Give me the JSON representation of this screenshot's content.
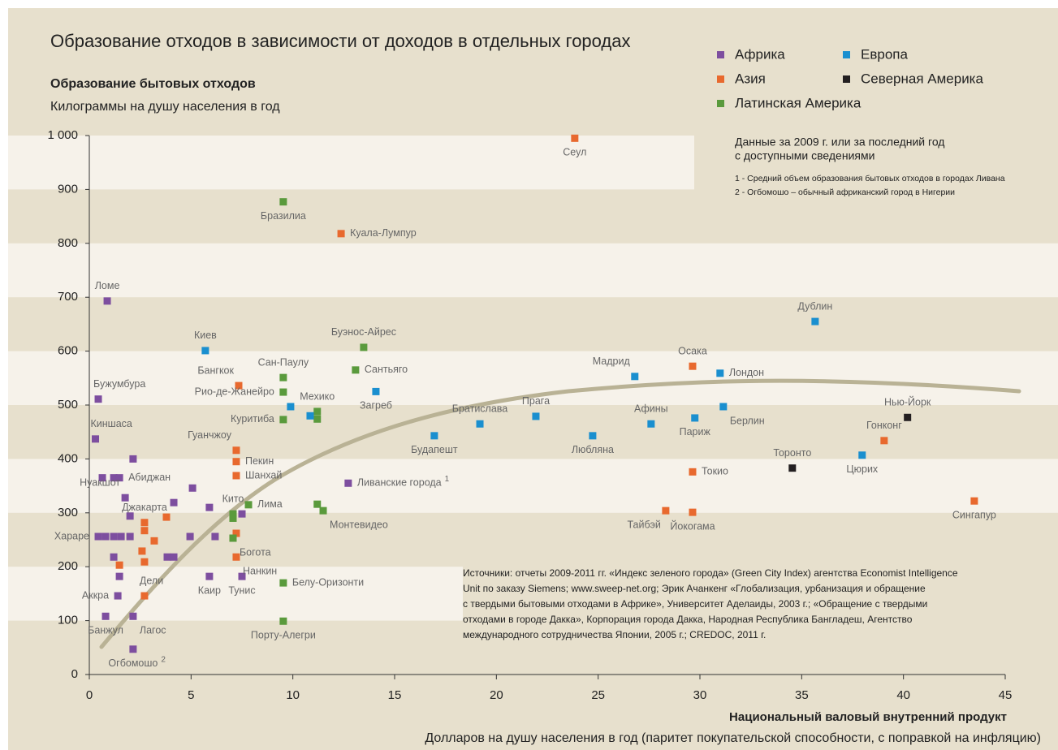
{
  "chart_data": {
    "type": "scatter",
    "title": "Образование отходов в зависимости от доходов в отдельных городах",
    "subtitle": "Образование бытовых отходов",
    "y_label": "Килограммы на душу населения в год",
    "x_label": "Национальный валовый внутренний продукт",
    "x_sublabel": "Долларов на душу населения в год (паритет покупательской способности, с поправкой на инфляцию)",
    "note": [
      "Данные за 2009 г. или за последний год",
      "с доступными сведениями"
    ],
    "footnotes": [
      "1 - Средний объем образования бытовых отходов в городах Ливана",
      "2 - Огбомошо – обычный африканский город в Нигерии"
    ],
    "source": [
      "Источники: отчеты 2009-2011 гг. «Индекс зеленого города» (Green City Index) агентства Economist Intelligence",
      "Unit по заказу  Siemens;  www.sweep-net.org; Эрик Ачанкенг «Глобализация, урбанизация и обращение",
      "с твердыми бытовыми отходами в Африке», Университет Аделаиды, 2003 г.; «Обращение с твердыми",
      "отходами в городе Дакка», Корпорация города Дакка, Народная Республика Бангладеш, Агентство",
      "международного сотрудничества Японии, 2005 г.; CREDOC, 2011 г."
    ],
    "xlim": [
      0,
      45
    ],
    "xticks": [
      0,
      5,
      10,
      15,
      20,
      25,
      30,
      35,
      40,
      45
    ],
    "ylim": [
      0,
      1000
    ],
    "yticks": [
      0,
      100,
      200,
      300,
      400,
      500,
      600,
      700,
      800,
      900,
      {
        "value": 1000,
        "label": "1 000"
      }
    ],
    "series": [
      {
        "name": "Африка",
        "color": "#7d4e9f",
        "x": [
          0.88,
          0.44,
          0.3,
          2.15,
          0.64,
          1.2,
          1.48,
          1.76,
          2.0,
          0.44,
          0.8,
          1.2,
          1.56,
          2.0,
          1.2,
          1.48,
          1.4,
          0.8,
          2.15,
          2.15,
          5.07,
          4.15,
          3.83,
          4.15,
          4.95,
          5.9,
          6.18,
          5.9,
          7.5,
          7.5,
          12.72
        ],
        "values": [
          693,
          511,
          437,
          400,
          365,
          365,
          365,
          328,
          294,
          256,
          256,
          256,
          256,
          256,
          218,
          182,
          146,
          108,
          108,
          47,
          346,
          319,
          218,
          218,
          256,
          182,
          256,
          310,
          298,
          182,
          355
        ],
        "labels": [
          "Ломе",
          "Бужумбура",
          "Киншаса",
          null,
          null,
          null,
          "Абиджан",
          "Нуакшот",
          null,
          "Хараре",
          null,
          null,
          null,
          null,
          null,
          null,
          "Аккра",
          "Банжул",
          "Лагос",
          "Огбомошо",
          null,
          null,
          null,
          null,
          null,
          "Каир",
          null,
          null,
          null,
          "Тунис",
          "Ливанские города"
        ],
        "label_notes": [
          null,
          null,
          null,
          null,
          null,
          null,
          null,
          null,
          null,
          null,
          null,
          null,
          null,
          null,
          null,
          null,
          null,
          null,
          null,
          "2",
          null,
          null,
          null,
          null,
          null,
          null,
          null,
          null,
          null,
          null,
          "1"
        ]
      },
      {
        "name": "Азия",
        "color": "#e8692e",
        "x": [
          23.85,
          12.37,
          7.34,
          7.22,
          7.22,
          7.22,
          7.22,
          7.22,
          2.71,
          2.71,
          3.79,
          3.19,
          2.59,
          2.71,
          1.48,
          2.71,
          29.64,
          29.64,
          28.32,
          29.64,
          39.05,
          43.48
        ],
        "values": [
          995,
          818,
          536,
          416,
          395,
          369,
          262,
          218,
          282,
          267,
          292,
          248,
          229,
          209,
          203,
          146,
          572,
          376,
          304,
          301,
          434,
          322
        ],
        "labels": [
          "Сеул",
          "Куала-Лумпур",
          "Бангкок",
          "Гуанчжоу",
          "Пекин",
          "Шанхай",
          null,
          "Нанкин",
          "Джакарта",
          null,
          null,
          null,
          null,
          null,
          null,
          "Дели",
          "Осака",
          "Токио",
          "Тайбэй",
          "Йокогама",
          "Гонконг",
          "Сингапур"
        ]
      },
      {
        "name": "Латинская Америка",
        "color": "#5a9a3c",
        "x": [
          9.53,
          13.48,
          13.08,
          9.53,
          9.53,
          9.53,
          11.2,
          11.2,
          7.06,
          7.06,
          7.82,
          11.2,
          11.49,
          7.06,
          9.53,
          9.53
        ],
        "values": [
          877,
          607,
          565,
          551,
          524,
          473,
          488,
          474,
          298,
          290,
          315,
          316,
          304,
          253,
          170,
          99
        ],
        "labels": [
          "Бразилиа",
          "Буэнос-Айрес",
          "Сантьяго",
          "Сан-Паулу",
          "Рио-де-Жанейро",
          "Куритиба",
          "Мехико",
          null,
          "Кито",
          null,
          "Лима",
          null,
          "Монтевидео",
          "Богота",
          "Белу-Оризонти",
          "Порту-Алегри"
        ]
      },
      {
        "name": "Европа",
        "color": "#1a8fcf",
        "x": [
          5.7,
          9.89,
          10.85,
          14.08,
          16.95,
          19.19,
          21.94,
          24.73,
          26.8,
          27.6,
          29.75,
          30.99,
          31.15,
          35.66,
          37.97
        ],
        "values": [
          601,
          497,
          480,
          525,
          443,
          465,
          479,
          443,
          553,
          465,
          476,
          559,
          497,
          655,
          407
        ],
        "labels": [
          "Киев",
          null,
          null,
          "Загреб",
          "Будапешт",
          "Братислава",
          "Прага",
          "Любляна",
          "Мадрид",
          "Афины",
          "Париж",
          "Лондон",
          "Берлин",
          "Дублин",
          "Цюрих"
        ]
      },
      {
        "name": "Северная Америка",
        "color": "#231f20",
        "x": [
          34.54,
          40.2
        ],
        "values": [
          383,
          477
        ],
        "labels": [
          "Торонто",
          "Нью-Йорк"
        ]
      }
    ]
  }
}
